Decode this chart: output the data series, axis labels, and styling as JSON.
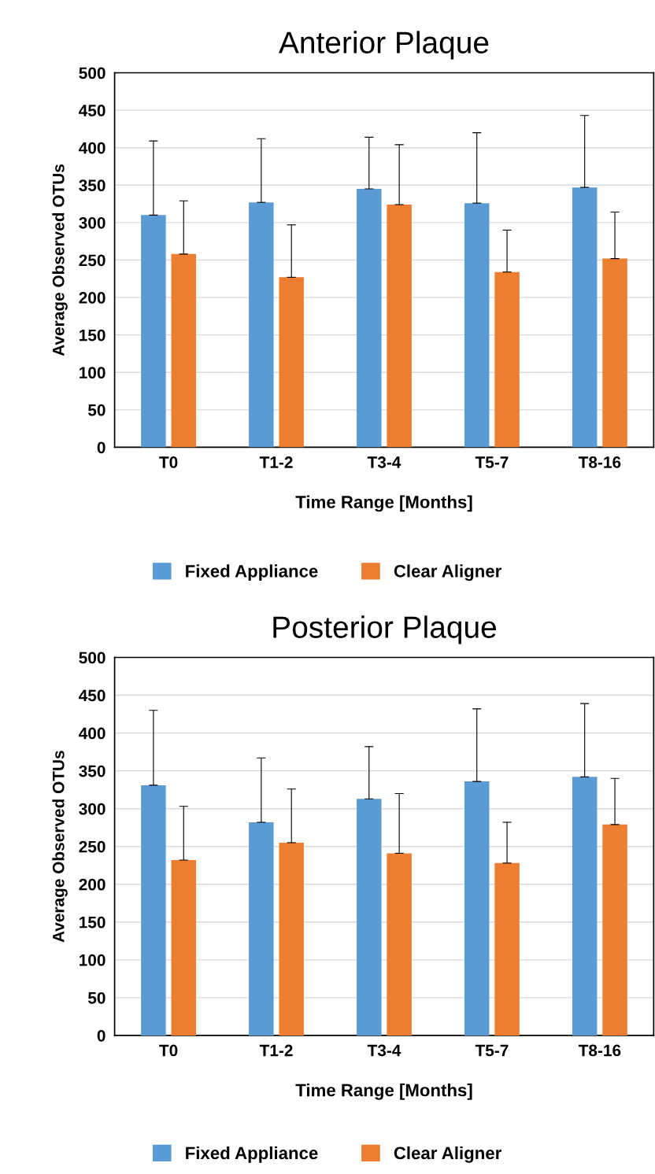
{
  "chart_data": [
    {
      "type": "bar",
      "title": "Anterior Plaque",
      "xlabel": "Time Range [Months]",
      "ylabel": "Average Observed OTUs",
      "categories": [
        "T0",
        "T1-2",
        "T3-4",
        "T5-7",
        "T8-16"
      ],
      "series": [
        {
          "name": "Fixed Appliance",
          "color": "#5b9bd5",
          "values": [
            310,
            327,
            345,
            326,
            347
          ],
          "errors": [
            [
              310,
              409
            ],
            [
              327,
              412
            ],
            [
              345,
              414
            ],
            [
              326,
              420
            ],
            [
              347,
              443
            ]
          ]
        },
        {
          "name": "Clear Aligner",
          "color": "#ed7d31",
          "values": [
            258,
            227,
            324,
            234,
            252
          ],
          "errors": [
            [
              258,
              329
            ],
            [
              227,
              297
            ],
            [
              324,
              404
            ],
            [
              234,
              290
            ],
            [
              252,
              314
            ]
          ]
        }
      ],
      "ylim": [
        0,
        500
      ],
      "yticks": [
        0,
        50,
        100,
        150,
        200,
        250,
        300,
        350,
        400,
        450,
        500
      ],
      "grid": "y",
      "legend": "bottom"
    },
    {
      "type": "bar",
      "title": "Posterior Plaque",
      "xlabel": "Time Range [Months]",
      "ylabel": "Average Observed OTUs",
      "categories": [
        "T0",
        "T1-2",
        "T3-4",
        "T5-7",
        "T8-16"
      ],
      "series": [
        {
          "name": "Fixed Appliance",
          "color": "#5b9bd5",
          "values": [
            331,
            282,
            313,
            336,
            342
          ],
          "errors": [
            [
              331,
              430
            ],
            [
              282,
              367
            ],
            [
              313,
              382
            ],
            [
              336,
              432
            ],
            [
              342,
              439
            ]
          ]
        },
        {
          "name": "Clear Aligner",
          "color": "#ed7d31",
          "values": [
            232,
            255,
            241,
            228,
            279
          ],
          "errors": [
            [
              232,
              303
            ],
            [
              255,
              326
            ],
            [
              241,
              320
            ],
            [
              228,
              282
            ],
            [
              279,
              340
            ]
          ]
        }
      ],
      "ylim": [
        0,
        500
      ],
      "yticks": [
        0,
        50,
        100,
        150,
        200,
        250,
        300,
        350,
        400,
        450,
        500
      ],
      "grid": "y",
      "legend": "bottom"
    }
  ]
}
